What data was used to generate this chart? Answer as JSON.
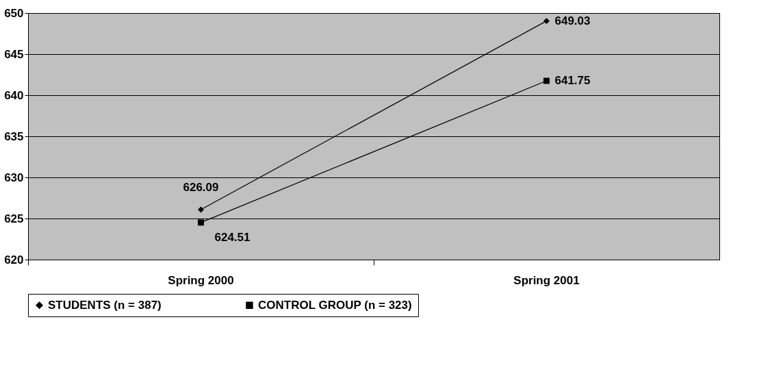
{
  "chart_data": {
    "type": "line",
    "categories": [
      "Spring 2000",
      "Spring 2001"
    ],
    "series": [
      {
        "name": "STUDENTS (n = 387)",
        "color": "#000000",
        "marker": "diamond",
        "values": [
          626.09,
          649.03
        ]
      },
      {
        "name": "CONTROL GROUP (n = 323)",
        "color": "#000000",
        "marker": "square",
        "values": [
          624.51,
          641.75
        ]
      }
    ],
    "ylim": [
      620,
      650
    ],
    "yticks": [
      620,
      625,
      630,
      635,
      640,
      645,
      650
    ],
    "grid": "y",
    "legend": "bottom",
    "data_labels": true
  }
}
